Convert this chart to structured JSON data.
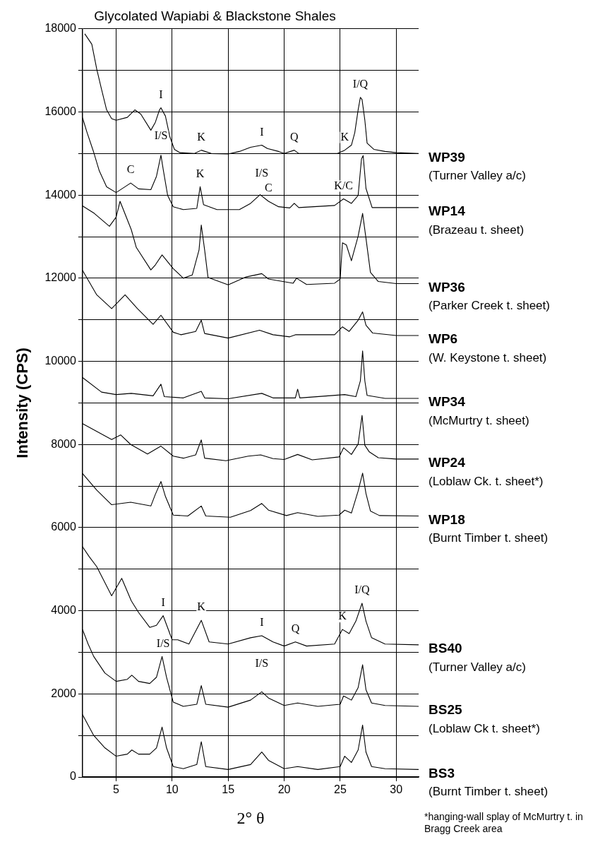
{
  "chart_data": {
    "type": "line",
    "title": "Glycolated Wapiabi & Blackstone Shales",
    "xlabel": "2° θ",
    "ylabel": "Intensity (CPS)",
    "xlim": [
      2,
      32
    ],
    "xticks": [
      5,
      10,
      15,
      20,
      25,
      30
    ],
    "ylim": [
      0,
      18000
    ],
    "yticks": [
      0,
      {
        "value": 1000,
        "label": null
      },
      2000,
      {
        "value": 3000,
        "label": null
      },
      4000,
      {
        "value": 5000,
        "label": null
      },
      6000,
      {
        "value": 7000,
        "label": null
      },
      8000,
      {
        "value": 9000,
        "label": null
      },
      10000,
      {
        "value": 11000,
        "label": null
      },
      12000,
      {
        "value": 13000,
        "label": null
      },
      14000,
      {
        "value": 15000,
        "label": null
      },
      16000,
      {
        "value": 17000,
        "label": null
      },
      18000
    ],
    "grid": true,
    "legend": false,
    "marker": "none",
    "line_style": "solid",
    "series": [
      {
        "name": "WP39",
        "color": "#000000",
        "x": [
          2.2,
          2.83,
          3.27,
          3.7,
          4.15,
          4.6,
          5,
          6,
          6.67,
          7.2,
          8.1,
          8.5,
          8.87,
          9,
          9.4,
          9.8,
          10.2,
          10.7,
          12,
          12.6,
          13.5,
          15,
          16,
          17,
          18,
          18.5,
          19.5,
          20,
          20.9,
          21.3,
          22,
          24,
          24.75,
          25.4,
          26,
          26.3,
          26.6,
          26.8,
          26.95,
          27.2,
          27.4,
          28,
          29,
          30,
          32
        ],
        "values": [
          17880,
          17630,
          17030,
          16540,
          16050,
          15840,
          15800,
          15870,
          16050,
          15950,
          15560,
          15750,
          16050,
          16100,
          15900,
          15400,
          15100,
          15020,
          15000,
          15080,
          15000,
          14990,
          15050,
          15150,
          15200,
          15120,
          15050,
          15000,
          15080,
          15000,
          15000,
          15000,
          15000,
          15080,
          15200,
          15500,
          16050,
          16350,
          16300,
          15800,
          15250,
          15100,
          15050,
          15020,
          15000
        ]
      },
      {
        "name": "WP14",
        "color": "#000000",
        "x": [
          2,
          2.4,
          2.95,
          3.5,
          4.15,
          5,
          6.3,
          7,
          8.1,
          8.6,
          9,
          9.2,
          9.6,
          10.1,
          11,
          12.2,
          12.5,
          12.8,
          14,
          16,
          17,
          17.85,
          18.6,
          19.5,
          20.5,
          20.9,
          21.3,
          24.5,
          25.3,
          26,
          26.6,
          26.9,
          27.05,
          27.3,
          27.85,
          29,
          32
        ],
        "values": [
          15860,
          15510,
          15070,
          14580,
          14200,
          14060,
          14290,
          14150,
          14130,
          14450,
          14960,
          14620,
          13990,
          13720,
          13650,
          13680,
          14200,
          13770,
          13650,
          13650,
          13800,
          14010,
          13850,
          13720,
          13690,
          13800,
          13700,
          13750,
          13910,
          13800,
          13990,
          14870,
          14950,
          14160,
          13700,
          13700,
          13700
        ]
      },
      {
        "name": "WP36",
        "color": "#000000",
        "x": [
          2,
          3.05,
          4.4,
          5,
          5.35,
          6.35,
          6.8,
          8.1,
          8.5,
          9.1,
          10.1,
          11,
          11.8,
          12.4,
          12.6,
          12.9,
          13.2,
          15,
          16.6,
          18,
          18.6,
          20.8,
          21.1,
          22,
          24.5,
          25,
          25.2,
          25.55,
          26,
          26.6,
          27,
          27.3,
          27.7,
          28.4,
          30,
          32
        ],
        "values": [
          13740,
          13560,
          13250,
          13470,
          13850,
          13170,
          12740,
          12200,
          12320,
          12560,
          12230,
          12000,
          12080,
          12680,
          13280,
          12680,
          12020,
          11840,
          12030,
          12110,
          11980,
          11880,
          12000,
          11850,
          11880,
          11980,
          12850,
          12800,
          12420,
          13010,
          13560,
          12960,
          12140,
          11920,
          11870,
          11870
        ]
      },
      {
        "name": "WP6",
        "color": "#000000",
        "x": [
          2,
          3.27,
          4.6,
          5.8,
          6.9,
          8.3,
          9,
          10.1,
          10.8,
          12.1,
          12.6,
          12.9,
          15,
          17.8,
          19,
          20.5,
          21,
          24.5,
          25.2,
          25.8,
          26.6,
          27,
          27.3,
          27.9,
          30,
          32
        ],
        "values": [
          12190,
          11600,
          11270,
          11600,
          11270,
          10890,
          11110,
          10700,
          10640,
          10720,
          10990,
          10670,
          10560,
          10750,
          10640,
          10590,
          10640,
          10640,
          10830,
          10720,
          10990,
          11190,
          10870,
          10680,
          10620,
          10620
        ]
      },
      {
        "name": "WP34",
        "color": "#000000",
        "x": [
          2,
          3.7,
          5,
          6.35,
          8.3,
          9,
          9.3,
          11,
          12.6,
          12.9,
          15,
          18,
          19,
          21,
          21.2,
          21.4,
          25.4,
          26.4,
          26.8,
          27,
          27.2,
          27.4,
          29,
          32
        ],
        "values": [
          9610,
          9260,
          9200,
          9230,
          9170,
          9450,
          9150,
          9120,
          9280,
          9120,
          9100,
          9230,
          9120,
          9120,
          9330,
          9120,
          9200,
          9150,
          9530,
          10250,
          9530,
          9180,
          9110,
          9110
        ]
      },
      {
        "name": "WP24",
        "color": "#000000",
        "x": [
          2,
          4.6,
          5.4,
          6.3,
          7.8,
          9,
          10.1,
          11,
          12.1,
          12.6,
          12.9,
          14.8,
          16.8,
          17.9,
          19,
          20,
          21.2,
          22.5,
          24.9,
          25.3,
          26,
          26.6,
          26.95,
          27.2,
          27.6,
          28.4,
          30,
          32
        ],
        "values": [
          8500,
          8120,
          8230,
          8000,
          7770,
          7960,
          7720,
          7670,
          7750,
          8110,
          7670,
          7610,
          7720,
          7750,
          7660,
          7640,
          7760,
          7630,
          7700,
          7920,
          7760,
          8010,
          8700,
          7980,
          7820,
          7680,
          7650,
          7650
        ]
      },
      {
        "name": "WP18",
        "color": "#000000",
        "x": [
          2,
          3.27,
          4.6,
          6.3,
          8.1,
          8.5,
          9,
          9.4,
          10.1,
          11.4,
          12.6,
          13,
          15.2,
          17,
          18,
          18.6,
          20.2,
          21.2,
          23,
          24.9,
          25.4,
          26,
          26.6,
          27,
          27.3,
          27.7,
          28.5,
          32
        ],
        "values": [
          7300,
          6900,
          6550,
          6610,
          6520,
          6800,
          7110,
          6750,
          6300,
          6280,
          6520,
          6280,
          6250,
          6410,
          6580,
          6420,
          6290,
          6360,
          6270,
          6300,
          6420,
          6350,
          6880,
          7310,
          6820,
          6400,
          6290,
          6280
        ]
      },
      {
        "name": "BS40",
        "color": "#000000",
        "x": [
          2,
          2.6,
          3.27,
          4.6,
          5.5,
          6.35,
          7,
          8,
          8.6,
          9.2,
          10,
          10.5,
          11.5,
          12.6,
          13.3,
          15,
          17,
          18,
          19,
          20,
          21,
          22,
          24.5,
          25.2,
          25.8,
          26.4,
          26.95,
          27.3,
          27.8,
          29,
          32
        ],
        "values": [
          5540,
          5300,
          5060,
          4360,
          4780,
          4240,
          3960,
          3600,
          3650,
          3880,
          3300,
          3300,
          3200,
          3770,
          3250,
          3200,
          3350,
          3400,
          3250,
          3150,
          3250,
          3150,
          3200,
          3550,
          3450,
          3750,
          4180,
          3750,
          3350,
          3200,
          3180
        ]
      },
      {
        "name": "BS25",
        "color": "#000000",
        "x": [
          2,
          2.5,
          3,
          4,
          5,
          6,
          6.4,
          7,
          8,
          8.6,
          9.1,
          9.5,
          10.1,
          11,
          12.2,
          12.6,
          13,
          15,
          17,
          18,
          18.6,
          20,
          21.2,
          23,
          25,
          25.3,
          26,
          26.6,
          27,
          27.3,
          27.8,
          29,
          32
        ],
        "values": [
          3550,
          3200,
          2900,
          2500,
          2300,
          2350,
          2450,
          2300,
          2250,
          2400,
          2900,
          2400,
          1800,
          1700,
          1750,
          2200,
          1750,
          1680,
          1850,
          2050,
          1900,
          1720,
          1780,
          1700,
          1750,
          1950,
          1850,
          2150,
          2700,
          2100,
          1780,
          1720,
          1700
        ]
      },
      {
        "name": "BS3",
        "color": "#000000",
        "x": [
          2,
          2.5,
          3,
          4,
          5,
          6,
          6.4,
          7,
          8,
          8.6,
          9.1,
          9.5,
          10.1,
          11,
          12.2,
          12.6,
          13,
          15,
          17,
          18,
          18.6,
          20,
          21.2,
          23,
          25,
          25.4,
          26,
          26.6,
          27,
          27.3,
          27.8,
          29,
          32
        ],
        "values": [
          1500,
          1250,
          1000,
          700,
          500,
          550,
          650,
          550,
          550,
          700,
          1200,
          700,
          250,
          200,
          300,
          850,
          250,
          180,
          300,
          600,
          400,
          200,
          250,
          180,
          250,
          500,
          350,
          650,
          1250,
          600,
          250,
          200,
          180
        ]
      }
    ],
    "annotations": [
      {
        "text": "I",
        "x": 9,
        "y": 16100
      },
      {
        "text": "I/S",
        "x": 9,
        "y": 16100
      },
      {
        "text": "K",
        "x": 12.6,
        "y": 15080
      },
      {
        "text": "I",
        "x": 18,
        "y": 15200
      },
      {
        "text": "I/S",
        "x": 18,
        "y": 15200
      },
      {
        "text": "Q",
        "x": 20.9,
        "y": 15080
      },
      {
        "text": "K",
        "x": 25.4,
        "y": 15080
      },
      {
        "text": "I/Q",
        "x": 26.8,
        "y": 16350
      },
      {
        "text": "C",
        "x": 6.3,
        "y": 14290
      },
      {
        "text": "K",
        "x": 12.5,
        "y": 14200
      },
      {
        "text": "C",
        "x": 18.6,
        "y": 13850
      },
      {
        "text": "K/C",
        "x": 25.3,
        "y": 13910
      },
      {
        "text": "I",
        "x": 9.2,
        "y": 3880
      },
      {
        "text": "I/S",
        "x": 9.2,
        "y": 3880
      },
      {
        "text": "K",
        "x": 12.6,
        "y": 3770
      },
      {
        "text": "I",
        "x": 18,
        "y": 3400
      },
      {
        "text": "I/S",
        "x": 18,
        "y": 3400
      },
      {
        "text": "Q",
        "x": 21,
        "y": 3250
      },
      {
        "text": "K",
        "x": 25.2,
        "y": 3550
      },
      {
        "text": "I/Q",
        "x": 26.95,
        "y": 4180
      },
      {
        "text": "(Turner Valley a/c)",
        "x": 32,
        "y": 15000
      },
      {
        "text": "(Brazeau t. sheet)",
        "x": 32,
        "y": 13700
      },
      {
        "text": "(Parker Creek t. sheet)",
        "x": 32,
        "y": 11870
      },
      {
        "text": "(W. Keystone t. sheet)",
        "x": 32,
        "y": 10620
      },
      {
        "text": "(McMurtry t. sheet)",
        "x": 32,
        "y": 9110
      },
      {
        "text": "(Loblaw Ck. t. sheet*)",
        "x": 32,
        "y": 7650
      },
      {
        "text": "(Burnt Timber t. sheet)",
        "x": 32,
        "y": 6280
      },
      {
        "text": "(Turner Valley a/c)",
        "x": 32,
        "y": 3180
      },
      {
        "text": "(Loblaw Ck t. sheet*)",
        "x": 32,
        "y": 1700
      },
      {
        "text": "(Burnt Timber t. sheet)",
        "x": 32,
        "y": 180
      },
      "*hanging-wall splay of McMurtry t. in Bragg Creek area"
    ]
  }
}
